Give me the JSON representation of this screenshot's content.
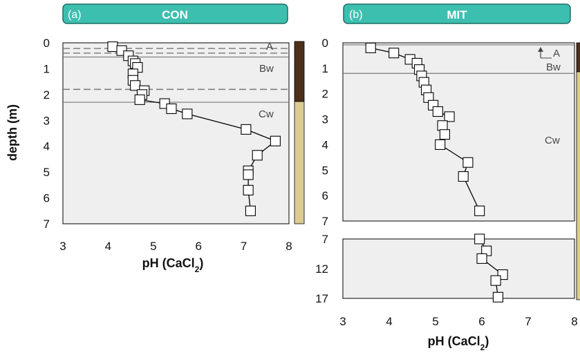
{
  "colors": {
    "header_fill": "#3dbfb0",
    "header_stroke": "#1d6e66",
    "plot_bg": "#efefef",
    "dark_soil": "#4b2f1a",
    "light_soil": "#dccb92",
    "marker_fill": "#ffffff",
    "line": "#000000",
    "boundary_line": "#777777"
  },
  "chart_data": [
    {
      "type": "line",
      "panel_tag": "(a)",
      "title": "CON",
      "xlabel_main": "pH (CaCl",
      "xlabel_sub": "2",
      "xlabel_end": ")",
      "ylabel": "depth (m)",
      "xlim": [
        3,
        8
      ],
      "ylim": [
        0,
        7
      ],
      "xticks": [
        "3",
        "4",
        "5",
        "6",
        "7",
        "8"
      ],
      "yticks": [
        "0",
        "1",
        "2",
        "3",
        "4",
        "5",
        "6",
        "7"
      ],
      "grid": false,
      "series": [
        {
          "x": [
            4.1,
            4.3,
            4.45,
            4.55,
            4.6,
            4.65,
            4.55,
            4.55,
            4.6,
            4.8,
            4.75,
            4.7,
            5.25,
            5.4,
            5.75,
            7.05,
            7.7,
            7.3,
            7.1,
            7.1,
            7.1,
            7.15
          ],
          "y": [
            0.15,
            0.3,
            0.5,
            0.7,
            0.8,
            0.95,
            1.2,
            1.45,
            1.65,
            1.85,
            2.0,
            2.2,
            2.35,
            2.55,
            2.75,
            3.35,
            3.8,
            4.35,
            4.95,
            5.1,
            5.7,
            6.5
          ]
        }
      ],
      "horizons": [
        {
          "label": "A",
          "depth_line_solid": 0.55,
          "dashed": [
            0.22,
            0.4
          ],
          "label_depth": 0.15
        },
        {
          "label": "Bw",
          "dashed": [
            1.8
          ],
          "label_depth": 1.0
        },
        {
          "label": "Cw",
          "solid": [
            2.3
          ],
          "label_depth": 2.85
        }
      ],
      "soil_bar": [
        {
          "from": 0,
          "to": 2.3,
          "color_key": "dark_soil"
        },
        {
          "from": 2.3,
          "to": 7,
          "color_key": "light_soil"
        }
      ]
    },
    {
      "type": "line",
      "panel_tag": "(b)",
      "title": "MIT",
      "xlabel_main": "pH (CaCl",
      "xlabel_sub": "2",
      "xlabel_end": ")",
      "xlim": [
        3,
        8
      ],
      "ylim": [
        0,
        7
      ],
      "ylim_lower": [
        7,
        17
      ],
      "xticks": [
        "3",
        "4",
        "5",
        "6",
        "7",
        "8"
      ],
      "yticks": [
        "0",
        "1",
        "2",
        "3",
        "4",
        "5",
        "6",
        "7"
      ],
      "yticks_lower": [
        "7",
        "12",
        "17"
      ],
      "grid": false,
      "series": [
        {
          "x": [
            3.6,
            4.1,
            4.45,
            4.6,
            4.65,
            4.7,
            4.75,
            4.8,
            4.85,
            4.95,
            5.05,
            5.3,
            5.15,
            5.2,
            5.1,
            5.7,
            5.6,
            5.95
          ],
          "y": [
            0.2,
            0.4,
            0.65,
            0.8,
            1.05,
            1.3,
            1.55,
            1.85,
            2.15,
            2.45,
            2.7,
            2.9,
            3.25,
            3.6,
            4.0,
            4.7,
            5.25,
            6.6
          ]
        }
      ],
      "series_lower": [
        {
          "x": [
            5.95,
            6.1,
            6.0,
            6.45,
            6.3,
            6.35
          ],
          "y": [
            7.0,
            9.0,
            10.3,
            13.0,
            14.0,
            16.8
          ]
        }
      ],
      "horizons": [
        {
          "label": "A",
          "label_depth": 0.3
        },
        {
          "label": "Bw",
          "solid": [
            1.2
          ],
          "label_depth": 0.9
        },
        {
          "label": "Cw",
          "label_depth": 3.7
        }
      ],
      "soil_bar": [
        {
          "from": 0,
          "to": 1.2,
          "color_key": "dark_soil"
        },
        {
          "from": 1.2,
          "to": 7,
          "color_key": "light_soil"
        }
      ]
    }
  ]
}
